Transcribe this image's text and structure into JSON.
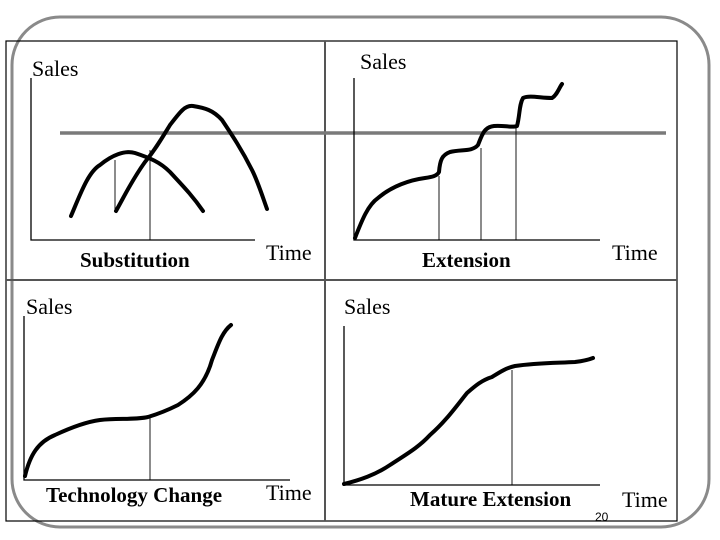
{
  "panels": {
    "substitution": {
      "y_label": "Sales",
      "x_label": "Time",
      "caption": "Substitution"
    },
    "extension": {
      "y_label": "Sales",
      "x_label": "Time",
      "caption": "Extension"
    },
    "technology_change": {
      "y_label": "Sales",
      "x_label": "Time",
      "caption": "Technology Change"
    },
    "mature_extension": {
      "y_label": "Sales",
      "x_label": "Time",
      "caption": "Mature Extension"
    }
  },
  "page_number": "20",
  "colors": {
    "frame": "#8a8a8a",
    "divider": "#555555",
    "threshold_line": "#7a7a7a",
    "curve": "#000000"
  }
}
